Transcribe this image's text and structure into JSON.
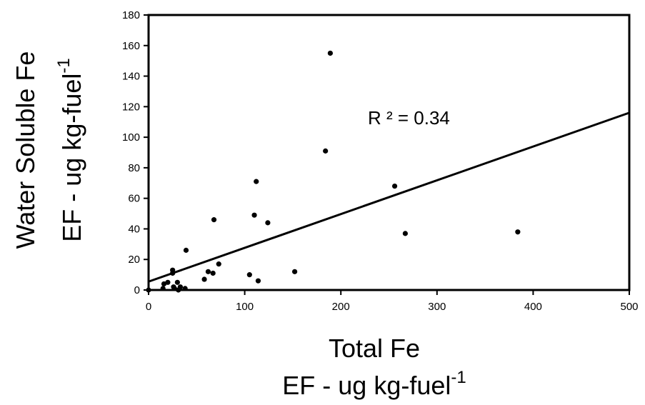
{
  "chart_data": {
    "type": "scatter",
    "title": "",
    "xlabel": {
      "line1": "Total Fe",
      "line2_base": "EF - ug kg-fuel",
      "line2_sup": "-1"
    },
    "ylabel": {
      "line1": "Water Soluble Fe",
      "line2_base": "EF - ug kg-fuel",
      "line2_sup": "-1"
    },
    "xlim": [
      0,
      500
    ],
    "ylim": [
      0,
      180
    ],
    "xticks": [
      "0",
      "100",
      "200",
      "300",
      "400",
      "500"
    ],
    "yticks": [
      "0",
      "20",
      "40",
      "60",
      "80",
      "100",
      "120",
      "140",
      "160",
      "180"
    ],
    "grid": false,
    "points": [
      {
        "x": 0,
        "y": 0
      },
      {
        "x": 15,
        "y": 1
      },
      {
        "x": 16,
        "y": 4
      },
      {
        "x": 20,
        "y": 5
      },
      {
        "x": 25,
        "y": 13
      },
      {
        "x": 25,
        "y": 11
      },
      {
        "x": 26,
        "y": 2
      },
      {
        "x": 27,
        "y": 1
      },
      {
        "x": 30,
        "y": 5
      },
      {
        "x": 31,
        "y": 0
      },
      {
        "x": 33,
        "y": 2
      },
      {
        "x": 38,
        "y": 1
      },
      {
        "x": 39,
        "y": 26
      },
      {
        "x": 58,
        "y": 7
      },
      {
        "x": 62,
        "y": 12
      },
      {
        "x": 67,
        "y": 11
      },
      {
        "x": 68,
        "y": 46
      },
      {
        "x": 73,
        "y": 17
      },
      {
        "x": 105,
        "y": 10
      },
      {
        "x": 110,
        "y": 49
      },
      {
        "x": 112,
        "y": 71
      },
      {
        "x": 114,
        "y": 6
      },
      {
        "x": 124,
        "y": 44
      },
      {
        "x": 152,
        "y": 12
      },
      {
        "x": 184,
        "y": 91
      },
      {
        "x": 189,
        "y": 155
      },
      {
        "x": 256,
        "y": 68
      },
      {
        "x": 267,
        "y": 37
      },
      {
        "x": 384,
        "y": 38
      }
    ],
    "trendline": {
      "x_start": 0,
      "y_start": 5.5,
      "x_end": 500,
      "y_end": 116
    },
    "annotation": "R ² = 0.34",
    "colors": {
      "points": "#000000",
      "line": "#000000",
      "axis": "#000000"
    }
  }
}
